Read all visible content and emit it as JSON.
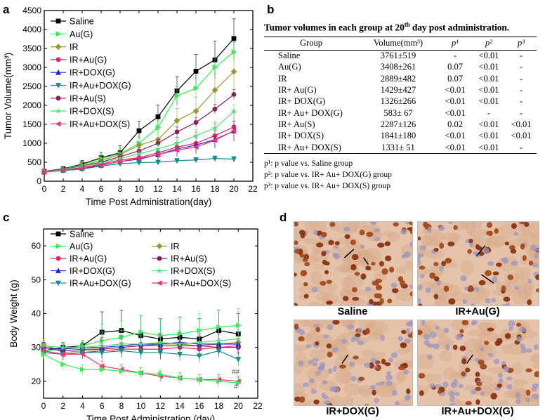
{
  "panels": {
    "a": "a",
    "b": "b",
    "c": "c",
    "d": "d"
  },
  "chart_data": [
    {
      "type": "line",
      "panel": "a",
      "xlabel": "Time Post Administration(day)",
      "ylabel": "Tumor Volume(mm³)",
      "xlim": [
        0,
        22
      ],
      "ylim": [
        0,
        4500
      ],
      "xticks": [
        0,
        2,
        4,
        6,
        8,
        10,
        12,
        14,
        16,
        18,
        20,
        22
      ],
      "yticks": [
        0,
        500,
        1000,
        1500,
        2000,
        2500,
        3000,
        3500,
        4000,
        4500
      ],
      "x": [
        0,
        2,
        4,
        6,
        8,
        10,
        12,
        14,
        16,
        18,
        20
      ],
      "legend": "top-left",
      "series": [
        {
          "name": "Saline",
          "color": "#000000",
          "marker": "square",
          "values": [
            260,
            330,
            450,
            620,
            750,
            1330,
            1700,
            2380,
            2900,
            3200,
            3761
          ]
        },
        {
          "name": "Au(G)",
          "color": "#33ee55",
          "marker": "triangle-right",
          "values": [
            250,
            320,
            430,
            600,
            720,
            1000,
            1420,
            2250,
            2450,
            3000,
            3408
          ]
        },
        {
          "name": "IR",
          "color": "#999933",
          "marker": "diamond",
          "values": [
            250,
            310,
            400,
            550,
            700,
            950,
            1100,
            1600,
            1850,
            2400,
            2889
          ]
        },
        {
          "name": "IR+Au(G)",
          "color": "#dd2266",
          "marker": "circle",
          "values": [
            240,
            300,
            360,
            450,
            560,
            620,
            750,
            900,
            1000,
            1200,
            1429
          ]
        },
        {
          "name": "IR+DOX(G)",
          "color": "#2222cc",
          "marker": "triangle-up",
          "values": [
            240,
            290,
            340,
            420,
            520,
            580,
            700,
            850,
            950,
            1100,
            1326
          ]
        },
        {
          "name": "IR+Au+DOX(G)",
          "color": "#1a8a8a",
          "marker": "triangle-down",
          "values": [
            240,
            280,
            320,
            400,
            460,
            490,
            500,
            540,
            560,
            600,
            583
          ]
        },
        {
          "name": "IR+Au(S)",
          "color": "#882255",
          "marker": "circle",
          "values": [
            250,
            310,
            400,
            500,
            650,
            800,
            1000,
            1300,
            1550,
            1900,
            2287
          ]
        },
        {
          "name": "IR+DOX(S)",
          "color": "#55dd77",
          "marker": "star",
          "values": [
            250,
            300,
            390,
            480,
            600,
            720,
            850,
            1000,
            1200,
            1400,
            1841
          ]
        },
        {
          "name": "IR+Au+DOX(S)",
          "color": "#ee3377",
          "marker": "triangle-left",
          "values": [
            240,
            290,
            350,
            430,
            520,
            600,
            700,
            820,
            900,
            1080,
            1331
          ]
        }
      ]
    },
    {
      "type": "table",
      "panel": "b",
      "title_pre": "Tumor volumes in each group at 20",
      "title_sup": "th",
      "title_post": " day post administration.",
      "columns": [
        "Group",
        "Volume(mm³)",
        "p¹",
        "p²",
        "p³"
      ],
      "rows": [
        [
          "Saline",
          "3761±519",
          "-",
          "<0.01",
          "-"
        ],
        [
          "Au(G)",
          "3408±261",
          "0.07",
          "<0.01",
          "-"
        ],
        [
          "IR",
          "2889±482",
          "0.07",
          "<0.01",
          "-"
        ],
        [
          "IR+ Au(G)",
          "1429±427",
          "<0.01",
          "<0.01",
          "-"
        ],
        [
          "IR+ DOX(G)",
          "1326±266",
          "<0.01",
          "<0.01",
          "-"
        ],
        [
          "IR+ Au+ DOX(G)",
          "583± 67",
          "<0.01",
          "-",
          "-"
        ],
        [
          "IR+ Au(S)",
          "2287±126",
          "0.02",
          "<0.01",
          "<0.01"
        ],
        [
          "IR+ DOX(S)",
          "1841±180",
          "<0.01",
          "<0.01",
          "<0.01"
        ],
        [
          "IR+ Au+ DOX(S)",
          "1331± 51",
          "<0.01",
          "<0.01",
          "-"
        ]
      ],
      "notes": [
        "p¹: p value vs. Saline group",
        "p²: p value vs. IR+ Au+ DOX(G) group",
        "p³: p value vs. IR+ Au+ DOX(S) group"
      ]
    },
    {
      "type": "line",
      "panel": "c",
      "xlabel": "Time Post Administration (day)",
      "ylabel": "Body Weight (g)",
      "xlim": [
        0,
        22
      ],
      "ylim": [
        15,
        65
      ],
      "xticks": [
        0,
        2,
        4,
        6,
        8,
        10,
        12,
        14,
        16,
        18,
        20,
        22
      ],
      "yticks": [
        20,
        30,
        40,
        50,
        60
      ],
      "x": [
        0,
        2,
        4,
        6,
        8,
        10,
        12,
        14,
        16,
        18,
        20
      ],
      "legend": "top",
      "annotations": [
        "##",
        "#"
      ],
      "series": [
        {
          "name": "Saline",
          "color": "#000000",
          "marker": "square",
          "values": [
            29,
            30,
            30.5,
            34.5,
            35,
            33.5,
            32.5,
            33,
            32.5,
            35,
            34
          ]
        },
        {
          "name": "Au(G)",
          "color": "#33ee55",
          "marker": "triangle-right",
          "values": [
            29,
            29.5,
            30.5,
            32,
            33,
            34.5,
            33.5,
            34,
            35,
            36,
            36.5
          ]
        },
        {
          "name": "IR",
          "color": "#999933",
          "marker": "diamond",
          "values": [
            31,
            28.5,
            29,
            29.5,
            30,
            30.5,
            31,
            31,
            30.5,
            31,
            31.5
          ]
        },
        {
          "name": "IR+Au(G)",
          "color": "#dd2266",
          "marker": "circle",
          "values": [
            28.5,
            28,
            28.5,
            29,
            29.5,
            29.5,
            29.5,
            30,
            29.5,
            30,
            30.5
          ]
        },
        {
          "name": "IR+Au(S)",
          "color": "#882255",
          "marker": "circle",
          "values": [
            30,
            29,
            29.5,
            29.5,
            30,
            30.5,
            30.5,
            30.5,
            30.5,
            30,
            30
          ]
        },
        {
          "name": "IR+DOX(G)",
          "color": "#2222cc",
          "marker": "triangle-up",
          "values": [
            30,
            29.5,
            30,
            30,
            30.5,
            31,
            31,
            31.5,
            31,
            31,
            31
          ]
        },
        {
          "name": "IR+DOX(S)",
          "color": "#55dd77",
          "marker": "star",
          "values": [
            30.5,
            30,
            30,
            30.5,
            31,
            31,
            31.5,
            31,
            31.5,
            32,
            32.5
          ]
        },
        {
          "name": "IR+Au+DOX(G)",
          "color": "#1a8a8a",
          "marker": "triangle-down",
          "values": [
            28.5,
            28,
            28.5,
            28.5,
            29,
            28.5,
            28.5,
            28,
            27.5,
            29,
            26.5
          ]
        },
        {
          "name": "IR+Au+DOX(S)",
          "color": "#ee3377",
          "marker": "triangle-left",
          "values": [
            29,
            28,
            28,
            24.5,
            23.5,
            22.5,
            21.5,
            21,
            20.5,
            20.5,
            20
          ]
        },
        {
          "name": "IR+Au+DOX(S)",
          "color": "#33ee55",
          "marker": "triangle-right",
          "values": [
            28,
            25,
            23.5,
            23.5,
            23,
            22.5,
            22,
            21,
            20.5,
            20,
            19.5
          ]
        }
      ]
    }
  ],
  "micrographs": [
    {
      "label": "Saline"
    },
    {
      "label": "IR+Au(G)"
    },
    {
      "label": "IR+DOX(G)"
    },
    {
      "label": "IR+Au+DOX(G)"
    }
  ]
}
